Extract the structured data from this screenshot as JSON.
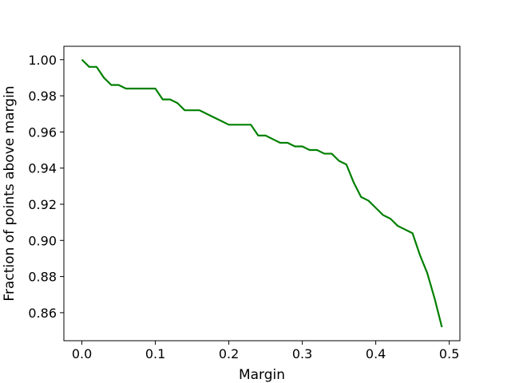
{
  "chart_data": {
    "type": "line",
    "title": "",
    "xlabel": "Margin",
    "ylabel": "Fraction of points above margin",
    "xlim": [
      -0.0245,
      0.5145
    ],
    "ylim": [
      0.8445,
      1.0074
    ],
    "xticks": [
      0.0,
      0.1,
      0.2,
      0.3,
      0.4,
      0.5
    ],
    "xtick_labels": [
      "0.0",
      "0.1",
      "0.2",
      "0.3",
      "0.4",
      "0.5"
    ],
    "yticks": [
      0.86,
      0.88,
      0.9,
      0.92,
      0.94,
      0.96,
      0.98,
      1.0
    ],
    "ytick_labels": [
      "0.86",
      "0.88",
      "0.90",
      "0.92",
      "0.94",
      "0.96",
      "0.98",
      "1.00"
    ],
    "grid": false,
    "series": [
      {
        "color": "#008000",
        "x": [
          0.0,
          0.01,
          0.02,
          0.03,
          0.04,
          0.05,
          0.06,
          0.07,
          0.08,
          0.09,
          0.1,
          0.11,
          0.12,
          0.13,
          0.14,
          0.15,
          0.16,
          0.17,
          0.18,
          0.19,
          0.2,
          0.21,
          0.22,
          0.23,
          0.24,
          0.25,
          0.26,
          0.27,
          0.28,
          0.29,
          0.3,
          0.31,
          0.32,
          0.33,
          0.34,
          0.35,
          0.36,
          0.37,
          0.38,
          0.39,
          0.4,
          0.41,
          0.42,
          0.43,
          0.44,
          0.45,
          0.46,
          0.47,
          0.48,
          0.49
        ],
        "y": [
          1.0,
          0.996,
          0.996,
          0.99,
          0.986,
          0.986,
          0.984,
          0.984,
          0.984,
          0.984,
          0.984,
          0.978,
          0.978,
          0.976,
          0.972,
          0.972,
          0.972,
          0.97,
          0.968,
          0.966,
          0.964,
          0.964,
          0.964,
          0.964,
          0.958,
          0.958,
          0.956,
          0.954,
          0.954,
          0.952,
          0.952,
          0.95,
          0.95,
          0.948,
          0.948,
          0.944,
          0.942,
          0.932,
          0.924,
          0.922,
          0.918,
          0.914,
          0.912,
          0.908,
          0.906,
          0.904,
          0.892,
          0.882,
          0.868,
          0.852
        ]
      }
    ]
  }
}
